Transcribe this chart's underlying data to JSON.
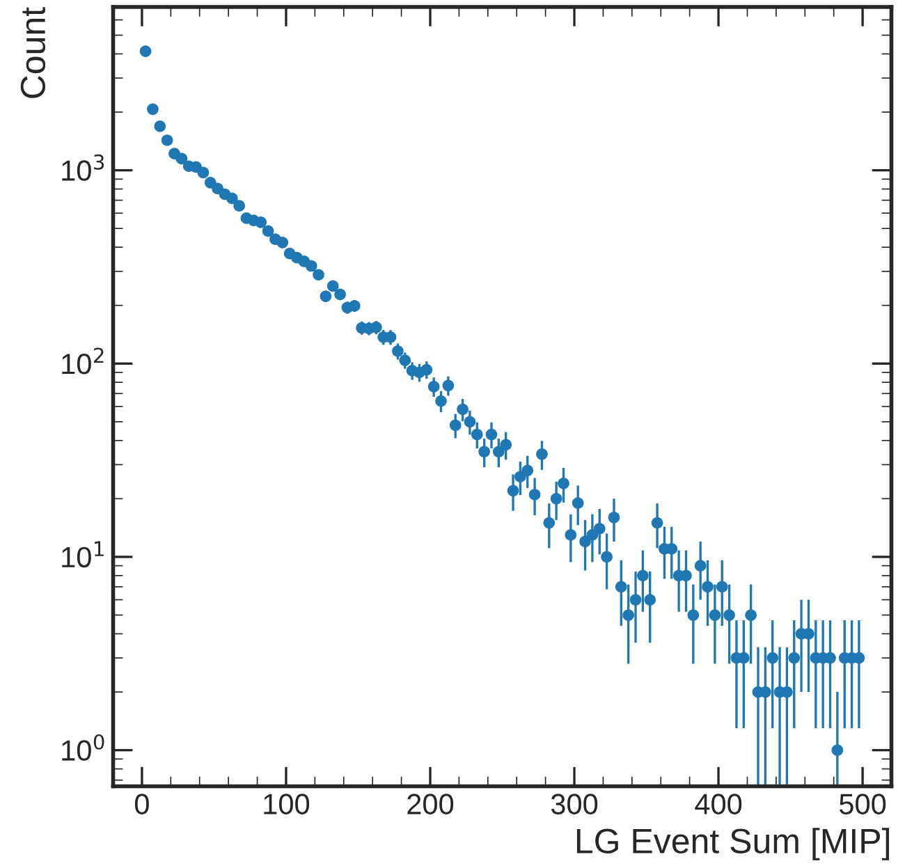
{
  "chart_data": {
    "type": "scatter",
    "xlabel": "LG Event Sum [MIP]",
    "ylabel": "Count",
    "log": "y",
    "marker": "circle",
    "grid": false,
    "legend": false,
    "xlim": [
      -20,
      520
    ],
    "xticks": [
      0,
      100,
      200,
      300,
      400,
      500
    ],
    "ylim": [
      0.65,
      7000
    ],
    "yticks": [
      {
        "value": 1,
        "label": "10$^{0}$"
      },
      {
        "value": 10,
        "label": "10$^{1}$"
      },
      {
        "value": 100,
        "label": "10$^{2}$"
      },
      {
        "value": 1000,
        "label": "10$^{3}$"
      }
    ],
    "x": [
      2.5,
      7.5,
      12.5,
      17.5,
      22.5,
      27.5,
      32.5,
      37.5,
      42.5,
      47.5,
      52.5,
      57.5,
      62.5,
      67.5,
      72.5,
      77.5,
      82.5,
      87.5,
      92.5,
      97.5,
      102.5,
      107.5,
      112.5,
      117.5,
      122.5,
      127.5,
      132.5,
      137.5,
      142.5,
      147.5,
      152.5,
      157.5,
      162.5,
      167.5,
      172.5,
      177.5,
      182.5,
      187.5,
      192.5,
      197.5,
      202.5,
      207.5,
      212.5,
      217.5,
      222.5,
      227.5,
      232.5,
      237.5,
      242.5,
      247.5,
      252.5,
      257.5,
      262.5,
      267.5,
      272.5,
      277.5,
      282.5,
      287.5,
      292.5,
      297.5,
      302.5,
      307.5,
      312.5,
      317.5,
      322.5,
      327.5,
      332.5,
      337.5,
      342.5,
      347.5,
      352.5,
      357.5,
      362.5,
      367.5,
      372.5,
      377.5,
      382.5,
      387.5,
      392.5,
      397.5,
      402.5,
      407.5,
      412.5,
      417.5,
      422.5,
      427.5,
      432.5,
      437.5,
      442.5,
      447.5,
      452.5,
      457.5,
      462.5,
      467.5,
      472.5,
      477.5,
      482.5,
      487.5,
      492.5,
      497.5
    ],
    "series": [
      {
        "color": "#1f77b4",
        "values": [
          4130,
          2070,
          1690,
          1430,
          1220,
          1150,
          1050,
          1040,
          973,
          863,
          804,
          752,
          716,
          655,
          565,
          550,
          538,
          485,
          440,
          423,
          371,
          353,
          338,
          320,
          288,
          223,
          252,
          228,
          195,
          199,
          153,
          152,
          154,
          137,
          137,
          116,
          104,
          92,
          90,
          93,
          76,
          64,
          77,
          48,
          58,
          50,
          43,
          35,
          43,
          35,
          38,
          22,
          26,
          28,
          21,
          34,
          15,
          20,
          24,
          13,
          19,
          12,
          13,
          14,
          10,
          16,
          7,
          5,
          6,
          8,
          6,
          15,
          11,
          11,
          8,
          8,
          5,
          9,
          7,
          5,
          7,
          5,
          3,
          3,
          5,
          2,
          2,
          3,
          2,
          2,
          3,
          4,
          4,
          3,
          3,
          3,
          1,
          3,
          3,
          3
        ],
        "errors": [
          64,
          45,
          41,
          38,
          35,
          34,
          32,
          32,
          31,
          29,
          28,
          27,
          27,
          26,
          24,
          23,
          23,
          22,
          21,
          21,
          19,
          19,
          18,
          18,
          17,
          15,
          16,
          15,
          14,
          14,
          12,
          12,
          12,
          12,
          12,
          11,
          10,
          9.6,
          9.5,
          9.6,
          8.7,
          8,
          8.8,
          6.9,
          7.6,
          7.1,
          6.6,
          5.9,
          6.6,
          5.9,
          6.2,
          4.7,
          5.1,
          5.3,
          4.6,
          5.8,
          3.9,
          4.5,
          4.9,
          3.6,
          4.4,
          3.5,
          3.6,
          3.7,
          3.2,
          4,
          2.6,
          2.2,
          2.4,
          2.8,
          2.4,
          3.9,
          3.3,
          3.3,
          2.8,
          2.8,
          2.2,
          3,
          2.6,
          2.2,
          2.6,
          2.2,
          1.7,
          1.7,
          2.2,
          [
            0.65,
            3.41
          ],
          [
            0.65,
            3.41
          ],
          1.7,
          [
            0.65,
            3.41
          ],
          [
            0.65,
            3.41
          ],
          1.7,
          2,
          2,
          1.7,
          1.7,
          1.7,
          [
            0.65,
            2
          ],
          1.7,
          1.7,
          1.7
        ]
      }
    ]
  }
}
